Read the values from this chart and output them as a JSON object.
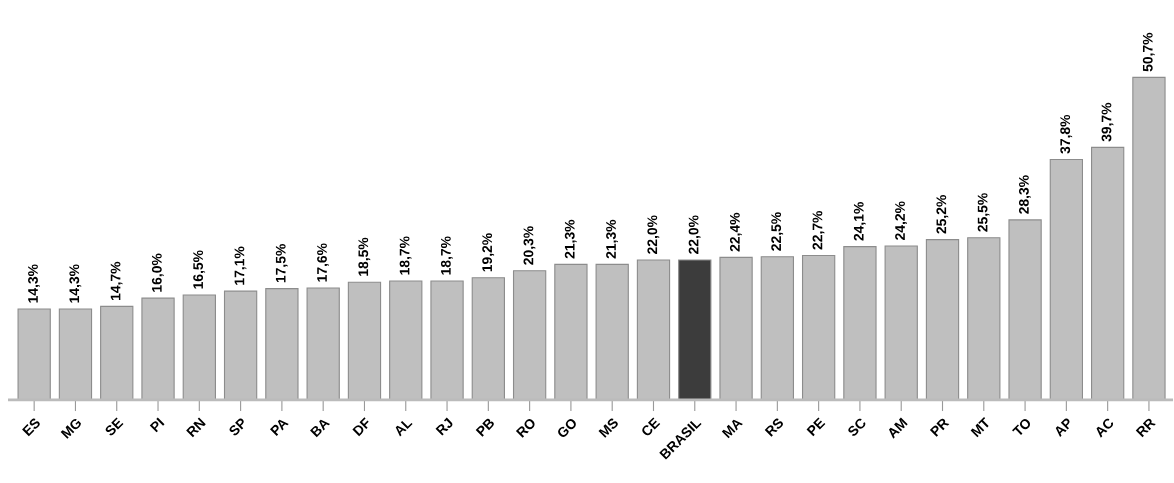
{
  "chart_data": {
    "type": "bar",
    "categories": [
      "ES",
      "MG",
      "SE",
      "PI",
      "RN",
      "SP",
      "PA",
      "BA",
      "DF",
      "AL",
      "RJ",
      "PB",
      "RO",
      "GO",
      "MS",
      "CE",
      "BRASIL",
      "MA",
      "RS",
      "PE",
      "SC",
      "AM",
      "PR",
      "MT",
      "TO",
      "AP",
      "AC",
      "RR"
    ],
    "values": [
      14.3,
      14.3,
      14.7,
      16.0,
      16.5,
      17.1,
      17.5,
      17.6,
      18.5,
      18.7,
      18.7,
      19.2,
      20.3,
      21.3,
      21.3,
      22.0,
      22.0,
      22.4,
      22.5,
      22.7,
      24.1,
      24.2,
      25.2,
      25.5,
      28.3,
      37.8,
      39.7,
      50.7
    ],
    "colors": [
      "#bfbfbf",
      "#bfbfbf",
      "#bfbfbf",
      "#bfbfbf",
      "#bfbfbf",
      "#bfbfbf",
      "#bfbfbf",
      "#bfbfbf",
      "#bfbfbf",
      "#bfbfbf",
      "#bfbfbf",
      "#bfbfbf",
      "#bfbfbf",
      "#bfbfbf",
      "#bfbfbf",
      "#bfbfbf",
      "#3c3c3c",
      "#bfbfbf",
      "#bfbfbf",
      "#bfbfbf",
      "#bfbfbf",
      "#bfbfbf",
      "#bfbfbf",
      "#bfbfbf",
      "#bfbfbf",
      "#bfbfbf",
      "#bfbfbf",
      "#bfbfbf"
    ],
    "value_labels": [
      "14,3%",
      "14,3%",
      "14,7%",
      "16,0%",
      "16,5%",
      "17,1%",
      "17,5%",
      "17,6%",
      "18,5%",
      "18,7%",
      "18,7%",
      "19,2%",
      "20,3%",
      "21,3%",
      "21,3%",
      "22,0%",
      "22,0%",
      "22,4%",
      "22,5%",
      "22,7%",
      "24,1%",
      "24,2%",
      "25,2%",
      "25,5%",
      "28,3%",
      "37,8%",
      "39,7%",
      "50,7%"
    ],
    "grid": false,
    "legend": false
  }
}
